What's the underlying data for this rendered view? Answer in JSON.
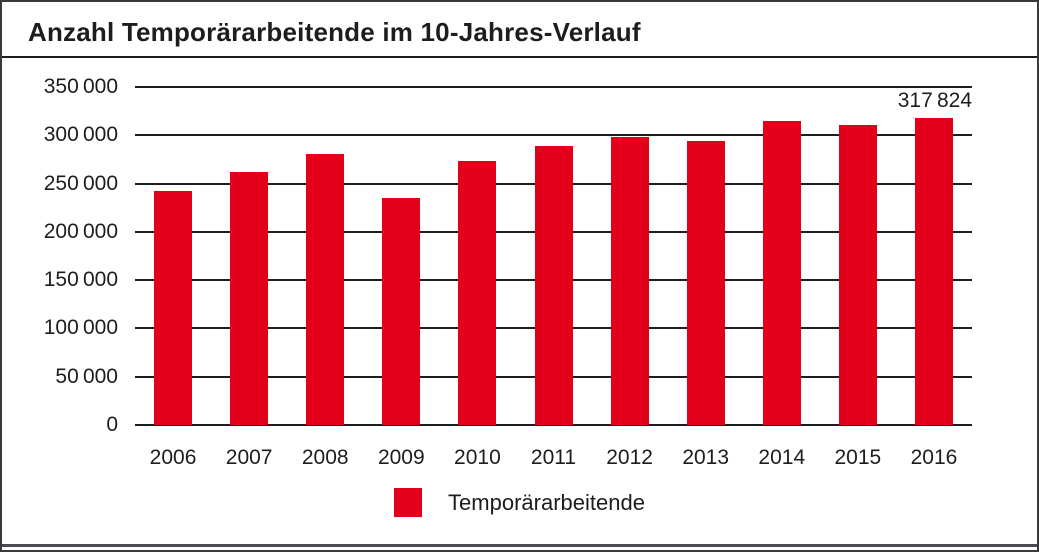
{
  "colors": {
    "bar": "#e2001a",
    "grid": "#1d1d1b",
    "text": "#1d1d1b",
    "frame_border": "#3a3a3a",
    "bottom_rule": "#4a4a52"
  },
  "legend": {
    "label": "Temporärarbeitende",
    "swatch_color": "#e2001a"
  },
  "chart_data": {
    "type": "bar",
    "title": "Anzahl Temporärarbeitende im 10-Jahres-Verlauf",
    "categories": [
      "2006",
      "2007",
      "2008",
      "2009",
      "2010",
      "2011",
      "2012",
      "2013",
      "2014",
      "2015",
      "2016"
    ],
    "series": [
      {
        "name": "Temporärarbeitende",
        "values": [
          242000,
          262000,
          281000,
          235000,
          273000,
          289000,
          298000,
          294000,
          315000,
          311000,
          317824
        ]
      }
    ],
    "xlabel": "",
    "ylabel": "",
    "ylim": [
      0,
      350000
    ],
    "ytick_step": 50000,
    "y_ticks": [
      {
        "value": 350000,
        "label": "350 000"
      },
      {
        "value": 300000,
        "label": "300 000"
      },
      {
        "value": 250000,
        "label": "250 000"
      },
      {
        "value": 200000,
        "label": "200 000"
      },
      {
        "value": 150000,
        "label": "150 000"
      },
      {
        "value": 100000,
        "label": "100 000"
      },
      {
        "value": 50000,
        "label": "50 000"
      },
      {
        "value": 0,
        "label": "0"
      }
    ],
    "grid": "horizontal",
    "legend_position": "bottom",
    "bar_color": "#e2001a",
    "value_label": {
      "category": "2016",
      "text": "317 824"
    }
  }
}
